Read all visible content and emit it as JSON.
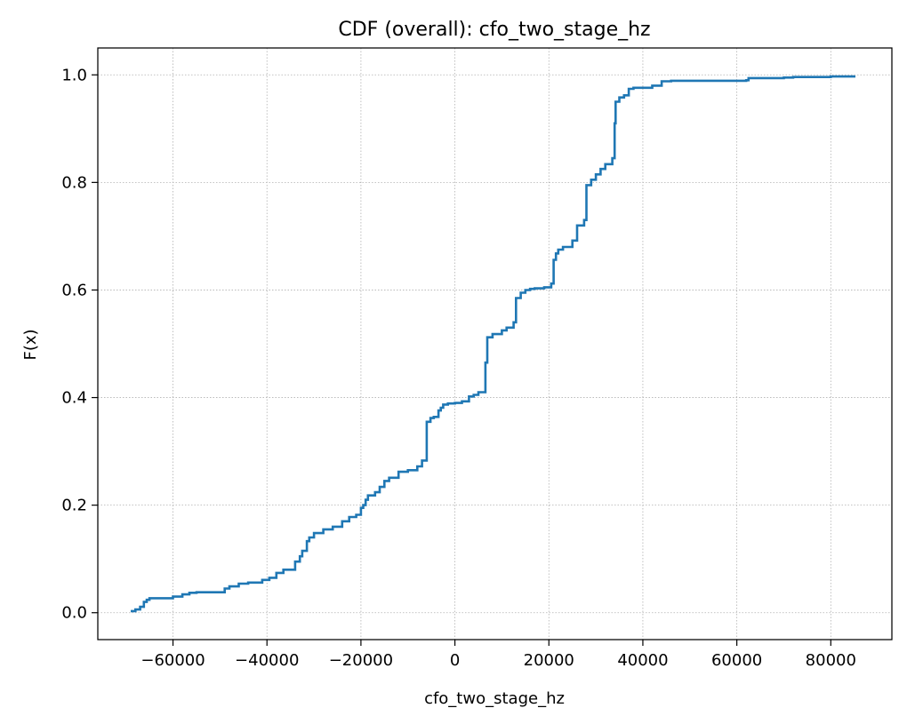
{
  "chart_data": {
    "type": "line",
    "title": "CDF (overall): cfo_two_stage_hz",
    "xlabel": "cfo_two_stage_hz",
    "ylabel": "F(x)",
    "xlim": [
      -76000,
      93000
    ],
    "ylim": [
      -0.05,
      1.05
    ],
    "x_ticks": [
      -60000,
      -40000,
      -20000,
      0,
      20000,
      40000,
      60000,
      80000
    ],
    "x_tick_labels": [
      "−60000",
      "−40000",
      "−20000",
      "0",
      "20000",
      "40000",
      "60000",
      "80000"
    ],
    "y_ticks": [
      0.0,
      0.2,
      0.4,
      0.6,
      0.8,
      1.0
    ],
    "y_tick_labels": [
      "0.0",
      "0.2",
      "0.4",
      "0.6",
      "0.8",
      "1.0"
    ],
    "grid": true,
    "legend": "none",
    "colors": {
      "line": "#1f77b4",
      "grid": "#b0b0b0",
      "axes": "#000000"
    },
    "series": [
      {
        "x": [
          -69000,
          -68000,
          -67000,
          -66200,
          -65600,
          -65000,
          -60000,
          -58000,
          -56500,
          -55000,
          -49000,
          -48000,
          -46000,
          -44000,
          -41000,
          -39500,
          -38000,
          -36500,
          -34000,
          -33000,
          -32500,
          -31500,
          -31000,
          -30000,
          -28000,
          -26000,
          -24000,
          -22500,
          -21000,
          -20000,
          -19500,
          -19000,
          -18500,
          -17000,
          -16000,
          -15000,
          -14000,
          -12000,
          -10000,
          -8000,
          -7000,
          -6200,
          -6000,
          -5200,
          -4500,
          -3500,
          -3000,
          -2500,
          -1500,
          0,
          1500,
          3000,
          4000,
          5000,
          6500,
          6900,
          8000,
          10000,
          11000,
          12500,
          13000,
          14000,
          15000,
          16000,
          17000,
          19000,
          20500,
          21000,
          21500,
          22000,
          23000,
          25000,
          26000,
          27500,
          28000,
          29000,
          30000,
          31000,
          32000,
          33500,
          34000,
          34200,
          35000,
          36000,
          37000,
          38000,
          42000,
          44000,
          46000,
          62000,
          62500,
          70000,
          72000,
          80000,
          85000
        ],
        "y": [
          0.003,
          0.006,
          0.011,
          0.02,
          0.024,
          0.027,
          0.03,
          0.034,
          0.037,
          0.038,
          0.045,
          0.049,
          0.054,
          0.056,
          0.061,
          0.065,
          0.074,
          0.08,
          0.095,
          0.105,
          0.115,
          0.133,
          0.14,
          0.148,
          0.155,
          0.16,
          0.17,
          0.178,
          0.182,
          0.195,
          0.2,
          0.21,
          0.218,
          0.224,
          0.234,
          0.245,
          0.251,
          0.262,
          0.265,
          0.272,
          0.283,
          0.283,
          0.355,
          0.362,
          0.364,
          0.376,
          0.381,
          0.387,
          0.389,
          0.39,
          0.393,
          0.402,
          0.405,
          0.41,
          0.465,
          0.512,
          0.518,
          0.525,
          0.53,
          0.54,
          0.585,
          0.595,
          0.6,
          0.602,
          0.603,
          0.605,
          0.612,
          0.656,
          0.668,
          0.675,
          0.68,
          0.692,
          0.72,
          0.73,
          0.795,
          0.805,
          0.815,
          0.825,
          0.834,
          0.845,
          0.91,
          0.95,
          0.958,
          0.962,
          0.974,
          0.976,
          0.98,
          0.988,
          0.989,
          0.99,
          0.994,
          0.995,
          0.996,
          0.997,
          0.999
        ]
      }
    ]
  }
}
